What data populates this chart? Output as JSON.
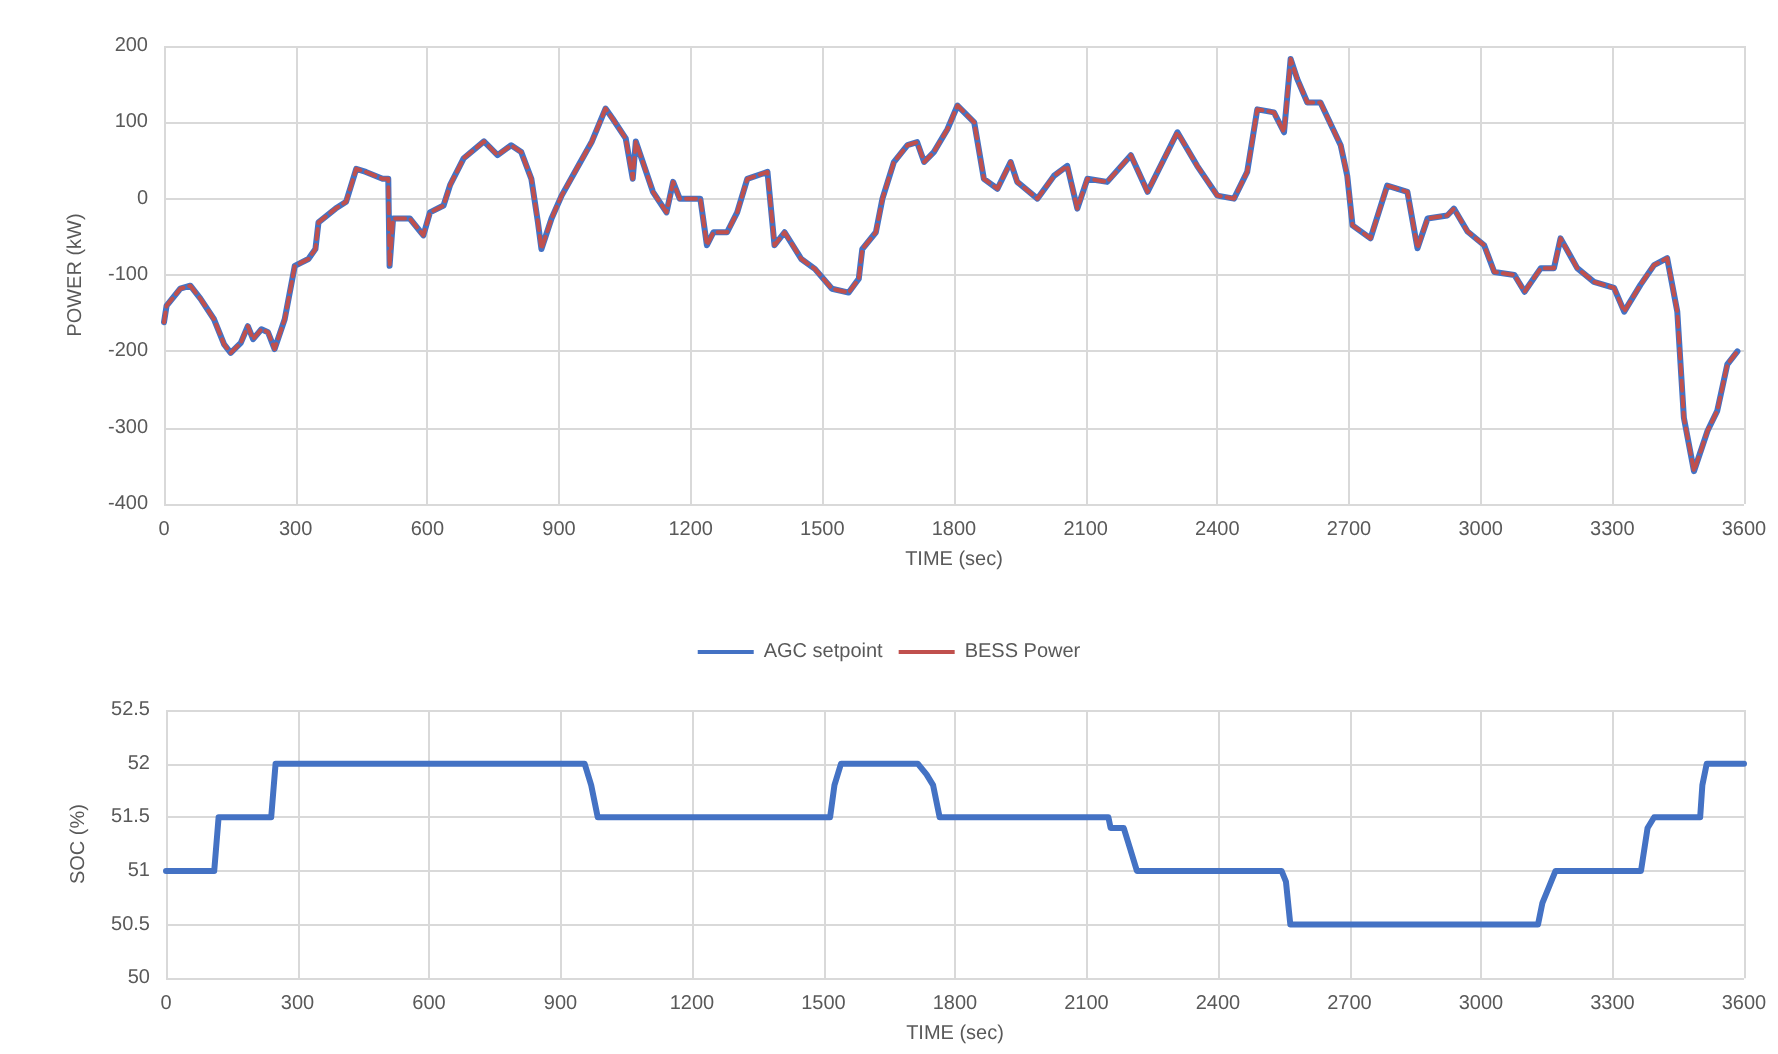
{
  "chart_data": [
    {
      "type": "line",
      "xlabel": "TIME (sec)",
      "ylabel": "POWER (kW)",
      "x": [
        0,
        6,
        37,
        60,
        83,
        114,
        137,
        152,
        175,
        191,
        203,
        222,
        237,
        252,
        275,
        298,
        329,
        345,
        352,
        391,
        415,
        431,
        438,
        460,
        498,
        511,
        514,
        522,
        560,
        591,
        606,
        637,
        652,
        683,
        729,
        760,
        791,
        814,
        837,
        852,
        860,
        883,
        906,
        945,
        975,
        1006,
        1022,
        1052,
        1068,
        1075,
        1114,
        1145,
        1160,
        1175,
        1222,
        1237,
        1252,
        1283,
        1306,
        1329,
        1375,
        1391,
        1414,
        1452,
        1483,
        1522,
        1560,
        1583,
        1591,
        1622,
        1637,
        1663,
        1694,
        1716,
        1732,
        1754,
        1785,
        1808,
        1846,
        1868,
        1899,
        1929,
        1944,
        1990,
        2028,
        2058,
        2081,
        2104,
        2149,
        2203,
        2241,
        2309,
        2354,
        2400,
        2438,
        2468,
        2491,
        2529,
        2552,
        2567,
        2582,
        2605,
        2635,
        2681,
        2696,
        2708,
        2749,
        2787,
        2833,
        2856,
        2879,
        2924,
        2939,
        2970,
        3008,
        3031,
        3077,
        3100,
        3137,
        3167,
        3182,
        3220,
        3258,
        3304,
        3327,
        3364,
        3395,
        3425,
        3448,
        3463,
        3486,
        3517,
        3539,
        3562,
        3585
      ],
      "series": [
        {
          "name": "AGC setpoint",
          "color": "#4472c4",
          "line_style": "solid",
          "values": [
            -162,
            -140,
            -118,
            -114,
            -131,
            -158,
            -191,
            -202,
            -189,
            -167,
            -184,
            -171,
            -175,
            -197,
            -158,
            -88,
            -79,
            -66,
            -31,
            -13,
            -4,
            26,
            39,
            35,
            26,
            26,
            -88,
            -26,
            -26,
            -48,
            -18,
            -9,
            18,
            53,
            75,
            57,
            70,
            61,
            26,
            -31,
            -66,
            -26,
            4,
            44,
            75,
            118,
            105,
            79,
            26,
            75,
            9,
            -18,
            22,
            0,
            0,
            -61,
            -44,
            -44,
            -18,
            26,
            35,
            -61,
            -44,
            -79,
            -92,
            -118,
            -123,
            -105,
            -66,
            -44,
            0,
            48,
            70,
            74,
            48,
            61,
            91,
            122,
            100,
            26,
            13,
            48,
            22,
            0,
            30,
            43,
            -13,
            26,
            22,
            57,
            9,
            87,
            43,
            4,
            0,
            35,
            117,
            113,
            87,
            183,
            157,
            126,
            126,
            70,
            30,
            -35,
            -52,
            17,
            9,
            -65,
            -26,
            -22,
            -13,
            -43,
            -61,
            -96,
            -100,
            -122,
            -91,
            -91,
            -52,
            -91,
            -109,
            -117,
            -148,
            -113,
            -87,
            -78,
            -148,
            -287,
            -357,
            -304,
            -278,
            -217,
            -200
          ]
        },
        {
          "name": "BESS Power",
          "color": "#c0504d",
          "line_style": "dashed",
          "values": [
            -162,
            -140,
            -118,
            -114,
            -131,
            -158,
            -191,
            -202,
            -189,
            -167,
            -184,
            -171,
            -175,
            -197,
            -158,
            -88,
            -79,
            -66,
            -31,
            -13,
            -4,
            26,
            39,
            35,
            26,
            26,
            -88,
            -26,
            -26,
            -48,
            -18,
            -9,
            18,
            53,
            75,
            57,
            70,
            61,
            26,
            -31,
            -66,
            -26,
            4,
            44,
            75,
            118,
            105,
            79,
            26,
            75,
            9,
            -18,
            22,
            0,
            0,
            -61,
            -44,
            -44,
            -18,
            26,
            35,
            -61,
            -44,
            -79,
            -92,
            -118,
            -123,
            -105,
            -66,
            -44,
            0,
            48,
            70,
            74,
            48,
            61,
            91,
            122,
            100,
            26,
            13,
            48,
            22,
            0,
            30,
            43,
            -13,
            26,
            22,
            57,
            9,
            87,
            43,
            4,
            0,
            35,
            117,
            113,
            87,
            183,
            157,
            126,
            126,
            70,
            30,
            -35,
            -52,
            17,
            9,
            -65,
            -26,
            -22,
            -13,
            -43,
            -61,
            -96,
            -100,
            -122,
            -91,
            -91,
            -52,
            -91,
            -109,
            -117,
            -148,
            -113,
            -87,
            -78,
            -148,
            -287,
            -357,
            -304,
            -278,
            -217,
            -200
          ]
        }
      ],
      "xlim": [
        0,
        3600
      ],
      "xticks": [
        0,
        300,
        600,
        900,
        1200,
        1500,
        1800,
        2100,
        2400,
        2700,
        3000,
        3300,
        3600
      ],
      "ylim": [
        -400,
        200
      ],
      "yticks": [
        -400,
        -300,
        -200,
        -100,
        0,
        100,
        200
      ],
      "grid": true,
      "legend": "bottom",
      "marker": "none"
    },
    {
      "type": "line",
      "xlabel": "TIME (sec)",
      "ylabel": "SOC (%)",
      "x": [
        0,
        110,
        120,
        240,
        250,
        955,
        970,
        985,
        1515,
        1525,
        1540,
        1715,
        1735,
        1750,
        1765,
        2150,
        2155,
        2185,
        2200,
        2215,
        2545,
        2555,
        2565,
        3130,
        3140,
        3160,
        3170,
        3365,
        3380,
        3395,
        3500,
        3505,
        3515,
        3600
      ],
      "series": [
        {
          "color": "#4472c4",
          "line_style": "solid",
          "values": [
            51,
            51,
            51.5,
            51.5,
            52,
            52,
            51.8,
            51.5,
            51.5,
            51.8,
            52,
            52,
            51.9,
            51.8,
            51.5,
            51.5,
            51.4,
            51.4,
            51.2,
            51,
            51,
            50.9,
            50.5,
            50.5,
            50.7,
            50.9,
            51,
            51,
            51.4,
            51.5,
            51.5,
            51.8,
            52,
            52
          ]
        }
      ],
      "xlim": [
        0,
        3600
      ],
      "xticks": [
        0,
        300,
        600,
        900,
        1200,
        1500,
        1800,
        2100,
        2400,
        2700,
        3000,
        3300,
        3600
      ],
      "ylim": [
        50,
        52.5
      ],
      "yticks": [
        50,
        50.5,
        51,
        51.5,
        52,
        52.5
      ],
      "grid": true,
      "legend": false,
      "marker": "none"
    }
  ]
}
